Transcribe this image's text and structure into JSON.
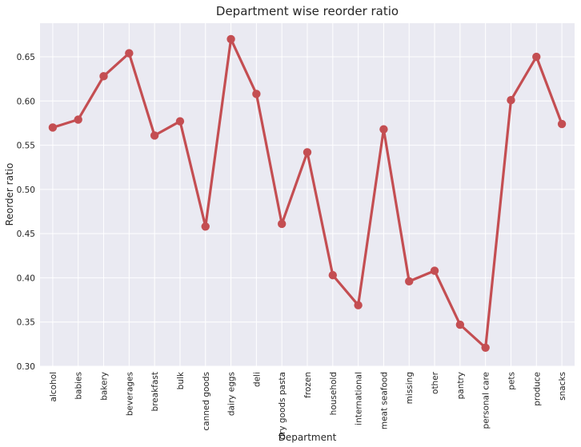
{
  "chart_data": {
    "type": "line",
    "title": "Department wise reorder ratio",
    "xlabel": "Department",
    "ylabel": "Reorder ratio",
    "categories": [
      "alcohol",
      "babies",
      "bakery",
      "beverages",
      "breakfast",
      "bulk",
      "canned goods",
      "dairy eggs",
      "deli",
      "dry goods pasta",
      "frozen",
      "household",
      "international",
      "meat seafood",
      "missing",
      "other",
      "pantry",
      "personal care",
      "pets",
      "produce",
      "snacks"
    ],
    "values": [
      0.57,
      0.579,
      0.628,
      0.654,
      0.561,
      0.577,
      0.458,
      0.67,
      0.608,
      0.461,
      0.542,
      0.403,
      0.369,
      0.568,
      0.396,
      0.408,
      0.347,
      0.321,
      0.601,
      0.65,
      0.574
    ],
    "ylim": [
      0.3,
      0.688
    ],
    "yticks": [
      "0.30",
      "0.35",
      "0.40",
      "0.45",
      "0.50",
      "0.55",
      "0.60",
      "0.65"
    ],
    "grid": true,
    "legend": "none",
    "colors": {
      "line": "#c44e52",
      "plot_bg": "#eaeaf2",
      "grid": "#ffffff"
    }
  }
}
